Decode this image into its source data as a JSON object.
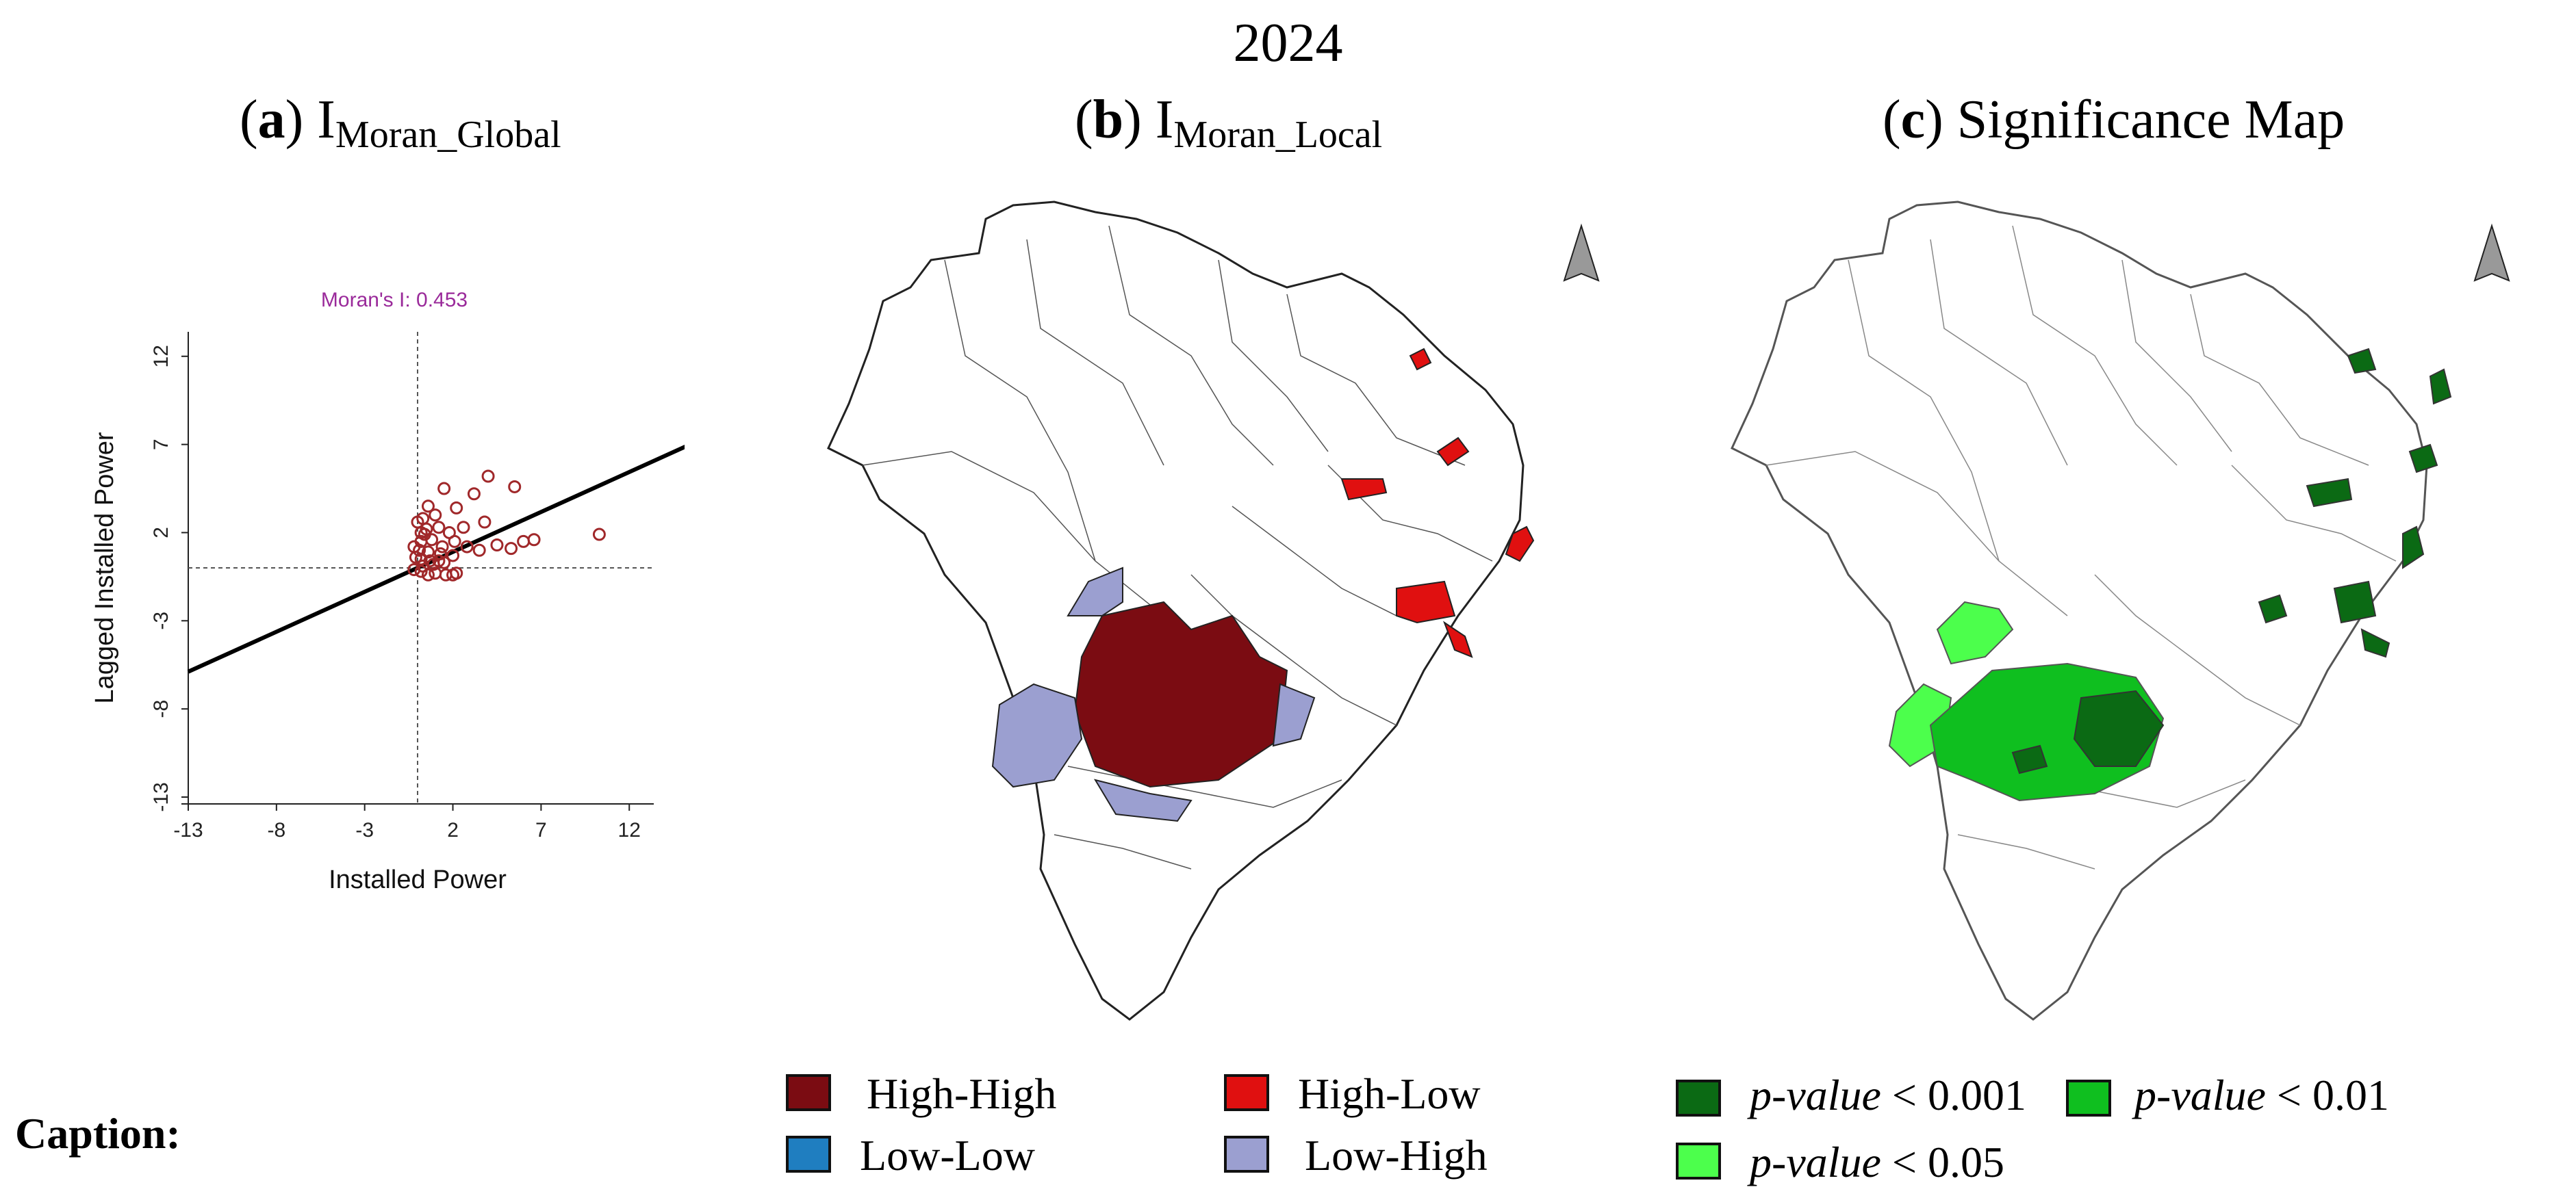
{
  "figure": {
    "year": "2024",
    "caption_label": "Caption:"
  },
  "panels": {
    "a": {
      "letter": "a",
      "main": "I",
      "sub": "Moran_Global"
    },
    "b": {
      "letter": "b",
      "main": "I",
      "sub": "Moran_Local"
    },
    "c": {
      "letter": "c",
      "title": "Significance Map"
    }
  },
  "chart_data": {
    "type": "scatter",
    "title": "Moran's I: 0.453",
    "xlabel": "Installed Power",
    "ylabel": "Lagged Installed Power",
    "xlim": [
      -13,
      13
    ],
    "ylim": [
      -13,
      13
    ],
    "xticks": [
      "-13",
      "-8",
      "-3",
      "2",
      "7",
      "12"
    ],
    "yticks": [
      "-13",
      "-8",
      "-3",
      "2",
      "7",
      "12"
    ],
    "reference_lines": {
      "x": 0,
      "y": 0
    },
    "regression": {
      "slope": 0.453,
      "intercept": 0
    },
    "points": [
      [
        4,
        5.2
      ],
      [
        1.5,
        4.5
      ],
      [
        5.5,
        4.6
      ],
      [
        3.2,
        4.2
      ],
      [
        0.6,
        3.5
      ],
      [
        1.0,
        3.0
      ],
      [
        2.2,
        3.4
      ],
      [
        0.3,
        2.8
      ],
      [
        3.8,
        2.6
      ],
      [
        10.3,
        1.9
      ],
      [
        0.2,
        2.0
      ],
      [
        0.5,
        2.2
      ],
      [
        1.2,
        2.3
      ],
      [
        1.8,
        2.0
      ],
      [
        2.6,
        2.3
      ],
      [
        4.5,
        1.3
      ],
      [
        5.3,
        1.1
      ],
      [
        6.0,
        1.5
      ],
      [
        6.6,
        1.6
      ],
      [
        3.5,
        1.0
      ],
      [
        0.2,
        1.5
      ],
      [
        0.8,
        1.6
      ],
      [
        1.4,
        1.2
      ],
      [
        2.1,
        1.5
      ],
      [
        2.8,
        1.2
      ],
      [
        0.1,
        1.0
      ],
      [
        0.6,
        0.9
      ],
      [
        1.3,
        0.8
      ],
      [
        2.0,
        0.7
      ],
      [
        0.2,
        0.5
      ],
      [
        0.7,
        0.4
      ],
      [
        1.2,
        0.4
      ],
      [
        0.3,
        0.1
      ],
      [
        0.9,
        0.2
      ],
      [
        1.5,
        0.3
      ],
      [
        0.2,
        -0.2
      ],
      [
        0.6,
        -0.4
      ],
      [
        1.0,
        -0.3
      ],
      [
        1.6,
        -0.4
      ],
      [
        2.2,
        -0.3
      ],
      [
        -0.2,
        -0.1
      ],
      [
        -0.1,
        0.6
      ],
      [
        -0.2,
        1.2
      ],
      [
        0.0,
        2.6
      ],
      [
        2.0,
        -0.4
      ],
      [
        0.4,
        1.9
      ]
    ]
  },
  "map_b": {
    "legend": [
      {
        "label": "High-High",
        "color": "#7b0c12"
      },
      {
        "label": "High-Low",
        "color": "#e01010"
      },
      {
        "label": "Low-Low",
        "color": "#1f7ec0"
      },
      {
        "label": "Low-High",
        "color": "#9b9fd0"
      }
    ]
  },
  "map_c": {
    "legend": [
      {
        "label": "p-value",
        "threshold": "< 0.001",
        "color": "#0b6a14"
      },
      {
        "label": "p-value",
        "threshold": "< 0.01",
        "color": "#0fbf1f"
      },
      {
        "label": "p-value",
        "threshold": "< 0.05",
        "color": "#4cff4c"
      }
    ]
  }
}
